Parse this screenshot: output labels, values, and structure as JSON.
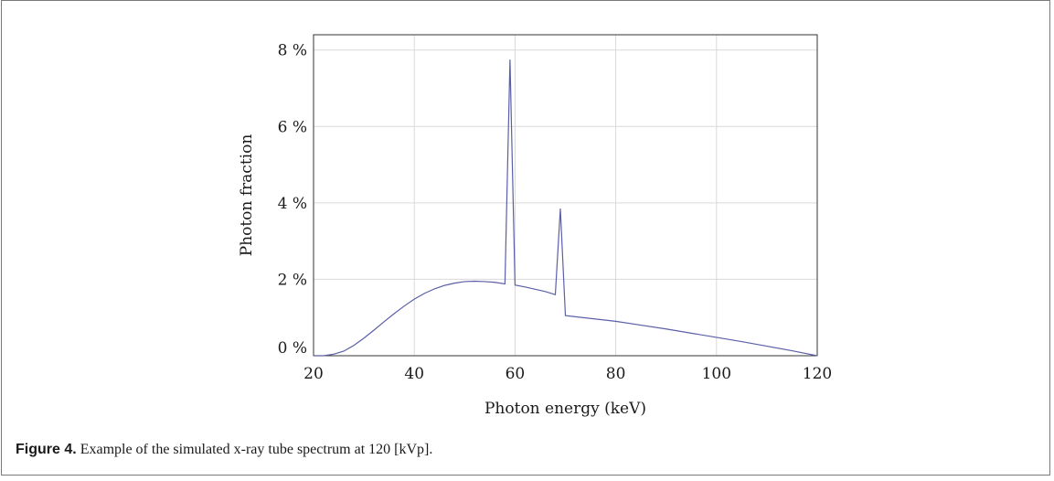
{
  "caption": {
    "label": "Figure 4.",
    "text": " Example of the simulated x-ray tube spectrum at 120 [kVp]."
  },
  "chart_data": {
    "type": "line",
    "xlabel": "Photon energy (keV)",
    "ylabel": "Photon fraction",
    "xlim": [
      20,
      120
    ],
    "ylim": [
      0,
      8.4
    ],
    "x_ticks": [
      20,
      40,
      60,
      80,
      100,
      120
    ],
    "y_ticks": [
      0,
      2,
      4,
      6,
      8
    ],
    "y_tick_format": "{v} %",
    "grid": true,
    "legend": "none",
    "line_color": "#5b5fa8",
    "series": [
      {
        "x": [
          20,
          22,
          24,
          26,
          28,
          30,
          32,
          34,
          36,
          38,
          40,
          42,
          44,
          46,
          48,
          50,
          52,
          54,
          56,
          58,
          59,
          60,
          62,
          64,
          66,
          68,
          69,
          70,
          72,
          74,
          76,
          78,
          80,
          85,
          90,
          95,
          100,
          105,
          110,
          115,
          120
        ],
        "y": [
          0,
          0,
          0.04,
          0.12,
          0.27,
          0.46,
          0.67,
          0.89,
          1.1,
          1.3,
          1.48,
          1.63,
          1.75,
          1.84,
          1.9,
          1.94,
          1.95,
          1.94,
          1.92,
          1.88,
          7.75,
          1.85,
          1.8,
          1.74,
          1.68,
          1.6,
          3.85,
          1.05,
          1.02,
          0.99,
          0.96,
          0.93,
          0.9,
          0.8,
          0.7,
          0.59,
          0.48,
          0.37,
          0.25,
          0.13,
          0
        ]
      }
    ]
  }
}
